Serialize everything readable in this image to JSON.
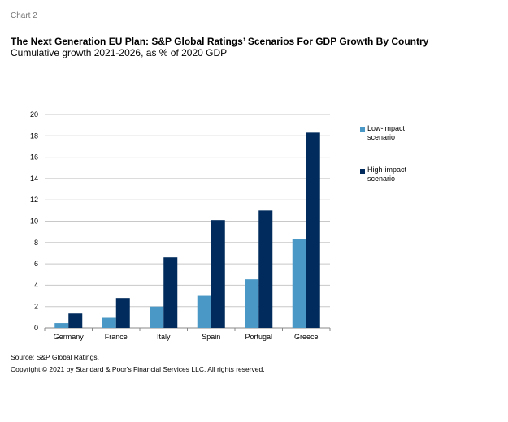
{
  "chart_label": "Chart 2",
  "chart_data": {
    "type": "bar",
    "title": "The Next Generation EU Plan: S&P Global Ratings’ Scenarios For GDP Growth By Country",
    "subtitle": "Cumulative growth 2021-2026, as % of 2020 GDP",
    "categories": [
      "Germany",
      "France",
      "Italy",
      "Spain",
      "Portugal",
      "Greece"
    ],
    "series": [
      {
        "name": "Low-impact scenario",
        "color": "#4a98c6",
        "values": [
          0.45,
          0.95,
          2.0,
          3.0,
          4.55,
          8.3
        ]
      },
      {
        "name": "High-impact scenario",
        "color": "#002b5c",
        "values": [
          1.35,
          2.8,
          6.6,
          10.1,
          11.0,
          18.3
        ]
      }
    ],
    "ylim": [
      0,
      20
    ],
    "yticks": [
      0,
      2,
      4,
      6,
      8,
      10,
      12,
      14,
      16,
      18,
      20
    ],
    "grid": true,
    "legend": "right",
    "xlabel": "",
    "ylabel": ""
  },
  "legend_lines": [
    [
      "Low-impact",
      "scenario"
    ],
    [
      "High-impact",
      "scenario"
    ]
  ],
  "source": "Source: S&P Global Ratings.",
  "copyright": "Copyright © 2021 by Standard & Poor's Financial Services LLC. All rights reserved."
}
